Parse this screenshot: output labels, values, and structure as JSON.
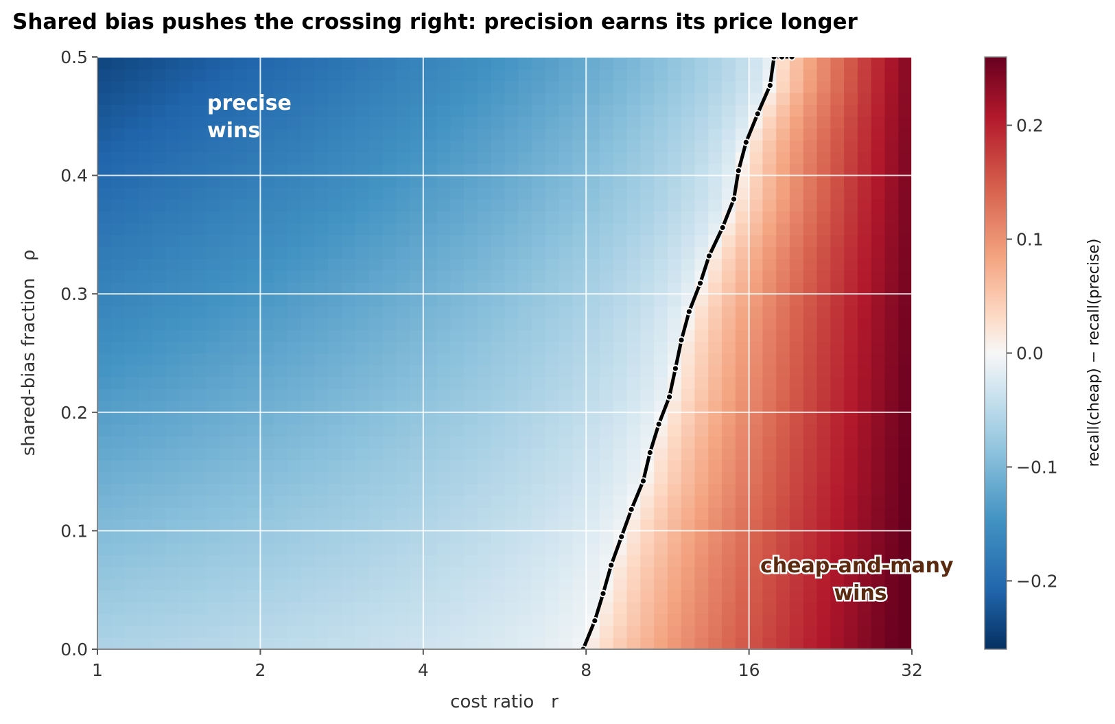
{
  "chart_data": {
    "type": "heatmap",
    "title": "Shared bias pushes the crossing right: precision earns its price longer",
    "xlabel": "cost ratio   r",
    "ylabel": "shared-bias fraction   ρ",
    "colorbar_label": "recall(cheap) − recall(precise)",
    "x_scale": "log2",
    "xlim": [
      1,
      32
    ],
    "ylim": [
      0,
      0.5
    ],
    "x_ticks": [
      1,
      2,
      4,
      8,
      16,
      32
    ],
    "x_tick_labels": [
      "1",
      "2",
      "4",
      "8",
      "16",
      "32"
    ],
    "y_ticks": [
      0.0,
      0.1,
      0.2,
      0.3,
      0.4,
      0.5
    ],
    "y_tick_labels": [
      "0.0",
      "0.1",
      "0.2",
      "0.3",
      "0.4",
      "0.5"
    ],
    "colorbar_range": [
      -0.26,
      0.26
    ],
    "colorbar_ticks": [
      -0.2,
      -0.1,
      0.0,
      0.1,
      0.2
    ],
    "colorbar_tick_labels": [
      "−0.2",
      "−0.1",
      "0.0",
      "0.1",
      "0.2"
    ],
    "colormap": "RdBu_r",
    "grid": true,
    "zero_contour": {
      "x": [
        7.9,
        8.3,
        8.6,
        8.9,
        9.3,
        9.7,
        10.2,
        10.5,
        10.9,
        11.4,
        11.7,
        12.0,
        12.4,
        13.0,
        13.5,
        14.3,
        15.0,
        15.3,
        15.8,
        16.6,
        17.5,
        17.8,
        18.4,
        19.2
      ],
      "y": [
        0.0,
        0.024,
        0.047,
        0.071,
        0.095,
        0.118,
        0.142,
        0.166,
        0.19,
        0.213,
        0.237,
        0.261,
        0.285,
        0.309,
        0.332,
        0.356,
        0.38,
        0.404,
        0.428,
        0.452,
        0.476,
        0.5,
        0.5,
        0.5
      ]
    },
    "annotations": [
      {
        "text": "precise\nwins",
        "lines": [
          "precise",
          "wins"
        ]
      },
      {
        "text": "cheap-and-many\nwins",
        "lines": [
          "cheap-and-many",
          "wins"
        ]
      }
    ],
    "colors": {
      "cold_end": "#053061",
      "neutral": "#f7f7f7",
      "hot_end": "#67001f",
      "contour": "#000000"
    }
  }
}
